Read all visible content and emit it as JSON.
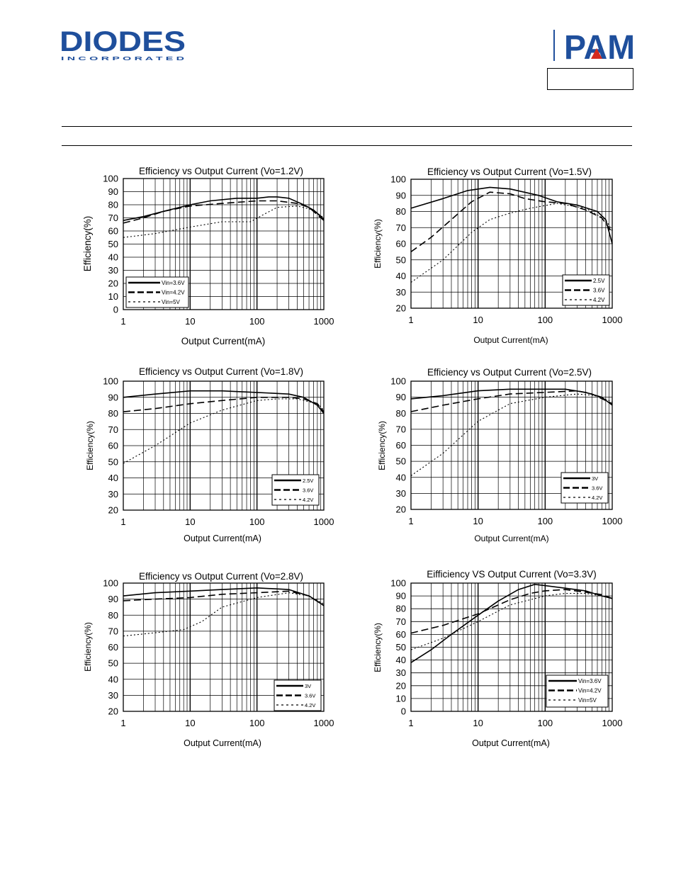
{
  "header": {
    "logo_text": "DIODES",
    "logo_subtext": "I N C O R P O R A T E D",
    "brand2": "PAM"
  },
  "chart_data": [
    {
      "id": "c1",
      "type": "line",
      "title": "Efficiency vs Output Current (Vo=1.2V)",
      "xlabel": "Output Current(mA)",
      "ylabel": "Efficiency(%)",
      "xscale": "log",
      "xlim": [
        1,
        1000
      ],
      "ylim": [
        0,
        100
      ],
      "ystep": 10,
      "xticks": [
        "1",
        "10",
        "100",
        "1000"
      ],
      "grid": true,
      "legend": "bottom-left",
      "series": [
        {
          "name": "Vin=3.6V",
          "style": "solid",
          "points": [
            [
              1,
              68
            ],
            [
              2,
              71
            ],
            [
              4,
              75
            ],
            [
              10,
              80
            ],
            [
              20,
              83
            ],
            [
              50,
              85
            ],
            [
              100,
              85
            ],
            [
              150,
              86
            ],
            [
              200,
              86
            ],
            [
              300,
              85
            ],
            [
              500,
              80
            ],
            [
              700,
              76
            ],
            [
              1000,
              69
            ]
          ]
        },
        {
          "name": "Vin=4.2V",
          "style": "dash",
          "points": [
            [
              1,
              66
            ],
            [
              2,
              70
            ],
            [
              4,
              75
            ],
            [
              10,
              79
            ],
            [
              30,
              81
            ],
            [
              100,
              83
            ],
            [
              200,
              83
            ],
            [
              400,
              81
            ],
            [
              600,
              78
            ],
            [
              1000,
              68
            ]
          ]
        },
        {
          "name": "Vin=5V",
          "style": "dot",
          "points": [
            [
              1,
              55
            ],
            [
              3,
              58
            ],
            [
              10,
              63
            ],
            [
              30,
              67
            ],
            [
              80,
              67
            ],
            [
              120,
              72
            ],
            [
              200,
              78
            ],
            [
              400,
              79
            ],
            [
              700,
              76
            ],
            [
              1000,
              70
            ]
          ]
        }
      ]
    },
    {
      "id": "c2",
      "type": "line",
      "title": "Efficiency vs Output Current (Vo=1.5V)",
      "xlabel": "Output Current(mA)",
      "ylabel": "Efficiency(%)",
      "xscale": "log",
      "xlim": [
        1,
        1000
      ],
      "ylim": [
        20,
        100
      ],
      "ystep": 10,
      "xticks": [
        "1",
        "10",
        "100",
        "1000"
      ],
      "grid": true,
      "legend": "bottom-right",
      "series": [
        {
          "name": "2.5V",
          "style": "solid",
          "points": [
            [
              1,
              82
            ],
            [
              3,
              88
            ],
            [
              7,
              93
            ],
            [
              15,
              95
            ],
            [
              30,
              94
            ],
            [
              80,
              90
            ],
            [
              150,
              86
            ],
            [
              300,
              84
            ],
            [
              600,
              80
            ],
            [
              800,
              75
            ],
            [
              1000,
              60
            ]
          ]
        },
        {
          "name": "3.6V",
          "style": "dash",
          "points": [
            [
              1,
              55
            ],
            [
              2,
              64
            ],
            [
              4,
              75
            ],
            [
              8,
              86
            ],
            [
              15,
              92
            ],
            [
              30,
              91
            ],
            [
              50,
              88
            ],
            [
              100,
              86
            ],
            [
              200,
              85
            ],
            [
              400,
              81
            ],
            [
              700,
              76
            ],
            [
              1000,
              67
            ]
          ]
        },
        {
          "name": "4.2V",
          "style": "dot",
          "points": [
            [
              1,
              36
            ],
            [
              3,
              50
            ],
            [
              8,
              67
            ],
            [
              15,
              75
            ],
            [
              30,
              79
            ],
            [
              60,
              82
            ],
            [
              150,
              85
            ],
            [
              400,
              82
            ],
            [
              800,
              75
            ],
            [
              1000,
              68
            ]
          ]
        }
      ]
    },
    {
      "id": "c3",
      "type": "line",
      "title": "Efficiency vs Output Current (Vo=1.8V)",
      "xlabel": "Output Current(mA)",
      "ylabel": "Efficiency(%)",
      "xscale": "log",
      "xlim": [
        1,
        1000
      ],
      "ylim": [
        20,
        100
      ],
      "ystep": 10,
      "xticks": [
        "1",
        "10",
        "100",
        "1000"
      ],
      "grid": true,
      "legend": "bottom-right",
      "series": [
        {
          "name": "2.5V",
          "style": "solid",
          "points": [
            [
              1,
              90
            ],
            [
              3,
              92
            ],
            [
              10,
              94
            ],
            [
              30,
              94
            ],
            [
              100,
              93
            ],
            [
              300,
              92
            ],
            [
              500,
              90
            ],
            [
              800,
              85
            ],
            [
              1000,
              80
            ]
          ]
        },
        {
          "name": "3.6V",
          "style": "dash",
          "points": [
            [
              1,
              81
            ],
            [
              3,
              83
            ],
            [
              10,
              86
            ],
            [
              30,
              88
            ],
            [
              100,
              90
            ],
            [
              300,
              90
            ],
            [
              500,
              89
            ],
            [
              800,
              86
            ],
            [
              1000,
              81
            ]
          ]
        },
        {
          "name": "4.2V",
          "style": "dot",
          "points": [
            [
              1,
              49
            ],
            [
              3,
              60
            ],
            [
              10,
              74
            ],
            [
              30,
              82
            ],
            [
              100,
              88
            ],
            [
              200,
              89
            ],
            [
              400,
              89
            ],
            [
              800,
              86
            ],
            [
              1000,
              82
            ]
          ]
        }
      ]
    },
    {
      "id": "c4",
      "type": "line",
      "title": "Efficiency vs Output Current (Vo=2.5V)",
      "xlabel": "Output Current(mA)",
      "ylabel": "Efficiency(%)",
      "xscale": "log",
      "xlim": [
        1,
        1000
      ],
      "ylim": [
        20,
        100
      ],
      "ystep": 10,
      "xticks": [
        "1",
        "10",
        "100",
        "1000"
      ],
      "grid": true,
      "legend": "bottom-right",
      "series": [
        {
          "name": "3V",
          "style": "solid",
          "points": [
            [
              1,
              89
            ],
            [
              3,
              91
            ],
            [
              10,
              94
            ],
            [
              30,
              95
            ],
            [
              100,
              95
            ],
            [
              200,
              95
            ],
            [
              400,
              93
            ],
            [
              700,
              90
            ],
            [
              1000,
              85
            ]
          ]
        },
        {
          "name": "3.6V",
          "style": "dash",
          "points": [
            [
              1,
              81
            ],
            [
              3,
              85
            ],
            [
              10,
              89
            ],
            [
              30,
              92
            ],
            [
              100,
              93
            ],
            [
              300,
              94
            ],
            [
              500,
              92
            ],
            [
              1000,
              86
            ]
          ]
        },
        {
          "name": "4.2V",
          "style": "dot",
          "points": [
            [
              1,
              41
            ],
            [
              3,
              55
            ],
            [
              10,
              75
            ],
            [
              30,
              86
            ],
            [
              100,
              90
            ],
            [
              300,
              92
            ],
            [
              600,
              91
            ],
            [
              1000,
              87
            ]
          ]
        }
      ]
    },
    {
      "id": "c5",
      "type": "line",
      "title": "Efficiency vs Output Current  (Vo=2.8V)",
      "xlabel": "Output Current(mA)",
      "ylabel": "Efficiency(%)",
      "xscale": "log",
      "xlim": [
        1,
        1000
      ],
      "ylim": [
        20,
        100
      ],
      "ystep": 10,
      "xticks": [
        "1",
        "10",
        "100",
        "1000"
      ],
      "grid": true,
      "legend": "bottom-right",
      "series": [
        {
          "name": "3V",
          "style": "solid",
          "points": [
            [
              1,
              92
            ],
            [
              3,
              94
            ],
            [
              10,
              95
            ],
            [
              30,
              96
            ],
            [
              100,
              97
            ],
            [
              300,
              96
            ],
            [
              600,
              92
            ],
            [
              1000,
              86
            ]
          ]
        },
        {
          "name": "3.6V",
          "style": "dash",
          "points": [
            [
              1,
              89
            ],
            [
              3,
              90
            ],
            [
              10,
              91
            ],
            [
              30,
              93
            ],
            [
              100,
              94
            ],
            [
              300,
              95
            ],
            [
              600,
              92
            ],
            [
              1000,
              86
            ]
          ]
        },
        {
          "name": "4.2V",
          "style": "dot",
          "points": [
            [
              1,
              67
            ],
            [
              3,
              69
            ],
            [
              8,
              71
            ],
            [
              15,
              76
            ],
            [
              30,
              85
            ],
            [
              100,
              91
            ],
            [
              300,
              94
            ],
            [
              600,
              92
            ],
            [
              1000,
              87
            ]
          ]
        }
      ]
    },
    {
      "id": "c6",
      "type": "line",
      "title": "Eifficiency VS Output Current (Vo=3.3V)",
      "xlabel": "Output Current(mA)",
      "ylabel": "Efficiency(%)",
      "xscale": "log",
      "xlim": [
        1,
        1000
      ],
      "ylim": [
        0,
        100
      ],
      "ystep": 10,
      "xticks": [
        "1",
        "10",
        "100",
        "1000"
      ],
      "grid": true,
      "legend": "bottom-right",
      "series": [
        {
          "name": "Vin=3.6V",
          "style": "solid",
          "points": [
            [
              1,
              38
            ],
            [
              2,
              48
            ],
            [
              4,
              60
            ],
            [
              10,
              75
            ],
            [
              20,
              86
            ],
            [
              40,
              95
            ],
            [
              70,
              99
            ],
            [
              100,
              98
            ],
            [
              200,
              96
            ],
            [
              400,
              94
            ],
            [
              700,
              90
            ],
            [
              1000,
              88
            ]
          ]
        },
        {
          "name": "Vin=4.2V",
          "style": "dash",
          "points": [
            [
              1,
              61
            ],
            [
              3,
              67
            ],
            [
              10,
              76
            ],
            [
              30,
              87
            ],
            [
              60,
              92
            ],
            [
              100,
              94
            ],
            [
              200,
              95
            ],
            [
              400,
              93
            ],
            [
              700,
              91
            ],
            [
              1000,
              88
            ]
          ]
        },
        {
          "name": "Vin=5V",
          "style": "dot",
          "points": [
            [
              1,
              48
            ],
            [
              3,
              57
            ],
            [
              10,
              70
            ],
            [
              30,
              83
            ],
            [
              100,
              90
            ],
            [
              200,
              92
            ],
            [
              400,
              92
            ],
            [
              700,
              90
            ],
            [
              1000,
              88
            ]
          ]
        }
      ]
    }
  ]
}
